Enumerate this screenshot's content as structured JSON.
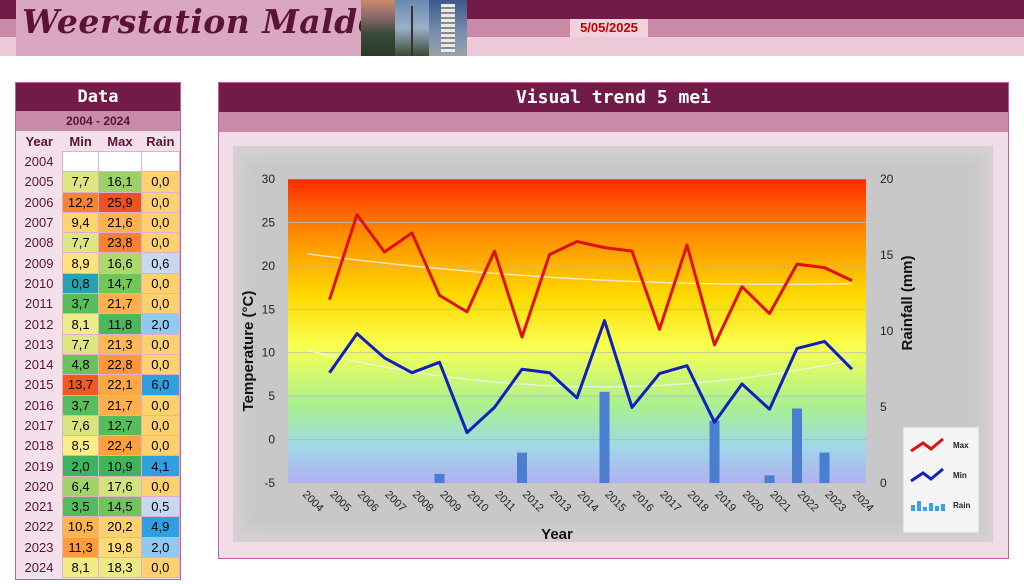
{
  "header": {
    "site_title": "Weerstation Malderen",
    "date": "5/05/2025"
  },
  "data_table": {
    "title": "Data",
    "range": "2004 - 2024",
    "columns": [
      "Year",
      "Min",
      "Max",
      "Rain"
    ],
    "rows": [
      {
        "year": "2004",
        "min": "",
        "max": "",
        "rain": ""
      },
      {
        "year": "2005",
        "min": "7,7",
        "max": "16,1",
        "rain": "0,0"
      },
      {
        "year": "2006",
        "min": "12,2",
        "max": "25,9",
        "rain": "0,0"
      },
      {
        "year": "2007",
        "min": "9,4",
        "max": "21,6",
        "rain": "0,0"
      },
      {
        "year": "2008",
        "min": "7,7",
        "max": "23,8",
        "rain": "0,0"
      },
      {
        "year": "2009",
        "min": "8,9",
        "max": "16,6",
        "rain": "0,6"
      },
      {
        "year": "2010",
        "min": "0,8",
        "max": "14,7",
        "rain": "0,0"
      },
      {
        "year": "2011",
        "min": "3,7",
        "max": "21,7",
        "rain": "0,0"
      },
      {
        "year": "2012",
        "min": "8,1",
        "max": "11,8",
        "rain": "2,0"
      },
      {
        "year": "2013",
        "min": "7,7",
        "max": "21,3",
        "rain": "0,0"
      },
      {
        "year": "2014",
        "min": "4,8",
        "max": "22,8",
        "rain": "0,0"
      },
      {
        "year": "2015",
        "min": "13,7",
        "max": "22,1",
        "rain": "6,0"
      },
      {
        "year": "2016",
        "min": "3,7",
        "max": "21,7",
        "rain": "0,0"
      },
      {
        "year": "2017",
        "min": "7,6",
        "max": "12,7",
        "rain": "0,0"
      },
      {
        "year": "2018",
        "min": "8,5",
        "max": "22,4",
        "rain": "0,0"
      },
      {
        "year": "2019",
        "min": "2,0",
        "max": "10,9",
        "rain": "4,1"
      },
      {
        "year": "2020",
        "min": "6,4",
        "max": "17,6",
        "rain": "0,0"
      },
      {
        "year": "2021",
        "min": "3,5",
        "max": "14,5",
        "rain": "0,5"
      },
      {
        "year": "2022",
        "min": "10,5",
        "max": "20,2",
        "rain": "4,9"
      },
      {
        "year": "2023",
        "min": "11,3",
        "max": "19,8",
        "rain": "2,0"
      },
      {
        "year": "2024",
        "min": "8,1",
        "max": "18,3",
        "rain": "0,0"
      }
    ]
  },
  "chart_panel": {
    "title": "Visual trend 5 mei"
  },
  "chart_data": {
    "type": "line",
    "title": "Visual trend 5 mei",
    "xlabel": "Year",
    "ylabel": "Temperature (°C)",
    "y2label": "Rainfall (mm)",
    "categories": [
      "2004",
      "2005",
      "2006",
      "2007",
      "2008",
      "2009",
      "2010",
      "2011",
      "2012",
      "2013",
      "2014",
      "2015",
      "2016",
      "2017",
      "2018",
      "2019",
      "2020",
      "2021",
      "2022",
      "2023",
      "2024"
    ],
    "ylim": [
      -5,
      30
    ],
    "y_ticks": [
      -5,
      0,
      5,
      10,
      15,
      20,
      25,
      30
    ],
    "y2lim": [
      0,
      20
    ],
    "y2_ticks": [
      0,
      5,
      10,
      15,
      20
    ],
    "grid": true,
    "legend_position": "right",
    "series": [
      {
        "name": "Max",
        "kind": "line",
        "axis": "left",
        "color": "#e01010",
        "values": [
          null,
          16.1,
          25.9,
          21.6,
          23.8,
          16.6,
          14.7,
          21.7,
          11.8,
          21.3,
          22.8,
          22.1,
          21.7,
          12.7,
          22.4,
          10.9,
          17.6,
          14.5,
          20.2,
          19.8,
          18.3
        ]
      },
      {
        "name": "Min",
        "kind": "line",
        "axis": "left",
        "color": "#1020c0",
        "values": [
          null,
          7.7,
          12.2,
          9.4,
          7.7,
          8.9,
          0.8,
          3.7,
          8.1,
          7.7,
          4.8,
          13.7,
          3.7,
          7.6,
          8.5,
          2.0,
          6.4,
          3.5,
          10.5,
          11.3,
          8.1
        ]
      },
      {
        "name": "Rain",
        "kind": "bar",
        "axis": "right",
        "color": "#4a7fd0",
        "values": [
          null,
          0,
          0,
          0,
          0,
          0.6,
          0,
          0,
          2.0,
          0,
          0,
          6.0,
          0,
          0,
          0,
          4.1,
          0,
          0.5,
          4.9,
          2.0,
          0
        ]
      }
    ],
    "trendlines": true
  },
  "colors": {
    "brand_dark": "#721a48",
    "brand_mid": "#c98aa8",
    "brand_light": "#ecc8d8",
    "date_text": "#c00000"
  }
}
